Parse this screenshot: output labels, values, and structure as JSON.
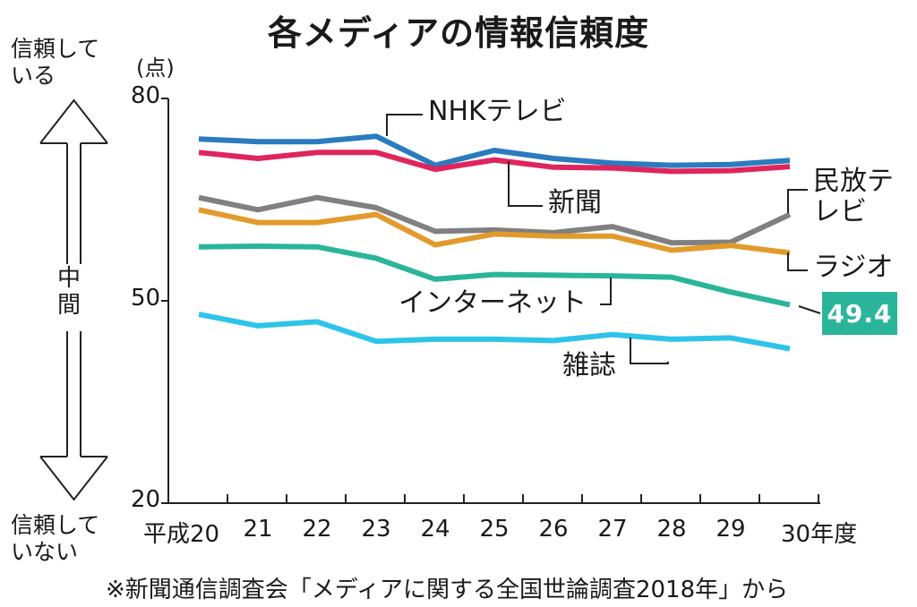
{
  "title": "各メディアの情報信頼度",
  "annotations": {
    "trust_top_line1": "信頼して",
    "trust_top_line2": "いる",
    "middle_line1": "中",
    "middle_line2": "間",
    "trust_bottom_line1": "信頼して",
    "trust_bottom_line2": "いない"
  },
  "source": "※新聞通信調査会「メディアに関する全国世論調査2018年」から",
  "chart_data": {
    "type": "line",
    "title": "各メディアの情報信頼度",
    "unit_label": "(点)",
    "ylim": [
      20,
      80
    ],
    "yticks": [
      "80",
      "50",
      "20"
    ],
    "categories": [
      "平成20",
      "21",
      "22",
      "23",
      "24",
      "25",
      "26",
      "27",
      "28",
      "29",
      "30年度"
    ],
    "grid": false,
    "highlight_value": "49.4",
    "series": [
      {
        "name": "NHKテレビ",
        "color": "#2a7bbf",
        "values": [
          74.0,
          73.6,
          73.6,
          74.4,
          70.1,
          72.3,
          71.1,
          70.4,
          70.1,
          70.2,
          70.8
        ]
      },
      {
        "name": "新聞",
        "color": "#e0245e",
        "values": [
          72.0,
          71.1,
          72.0,
          72.0,
          69.5,
          70.9,
          69.8,
          69.7,
          69.2,
          69.3,
          69.9
        ]
      },
      {
        "name": "民放テレビ",
        "color": "#808080",
        "values": [
          65.3,
          63.5,
          65.3,
          63.8,
          60.3,
          60.5,
          60.1,
          61.0,
          58.6,
          58.7,
          62.8
        ]
      },
      {
        "name": "ラジオ",
        "color": "#e39a2c",
        "values": [
          63.5,
          61.6,
          61.6,
          62.8,
          58.3,
          59.9,
          59.6,
          59.6,
          57.5,
          58.2,
          57.1
        ]
      },
      {
        "name": "インターネット",
        "color": "#2ab59a",
        "values": [
          58.0,
          58.1,
          58.0,
          56.3,
          53.2,
          53.9,
          53.8,
          53.7,
          53.5,
          51.3,
          49.4
        ]
      },
      {
        "name": "雑誌",
        "color": "#2ec4ea",
        "values": [
          48.0,
          46.3,
          46.9,
          44.0,
          44.3,
          44.3,
          44.1,
          45.0,
          44.3,
          44.5,
          42.9
        ]
      }
    ]
  }
}
